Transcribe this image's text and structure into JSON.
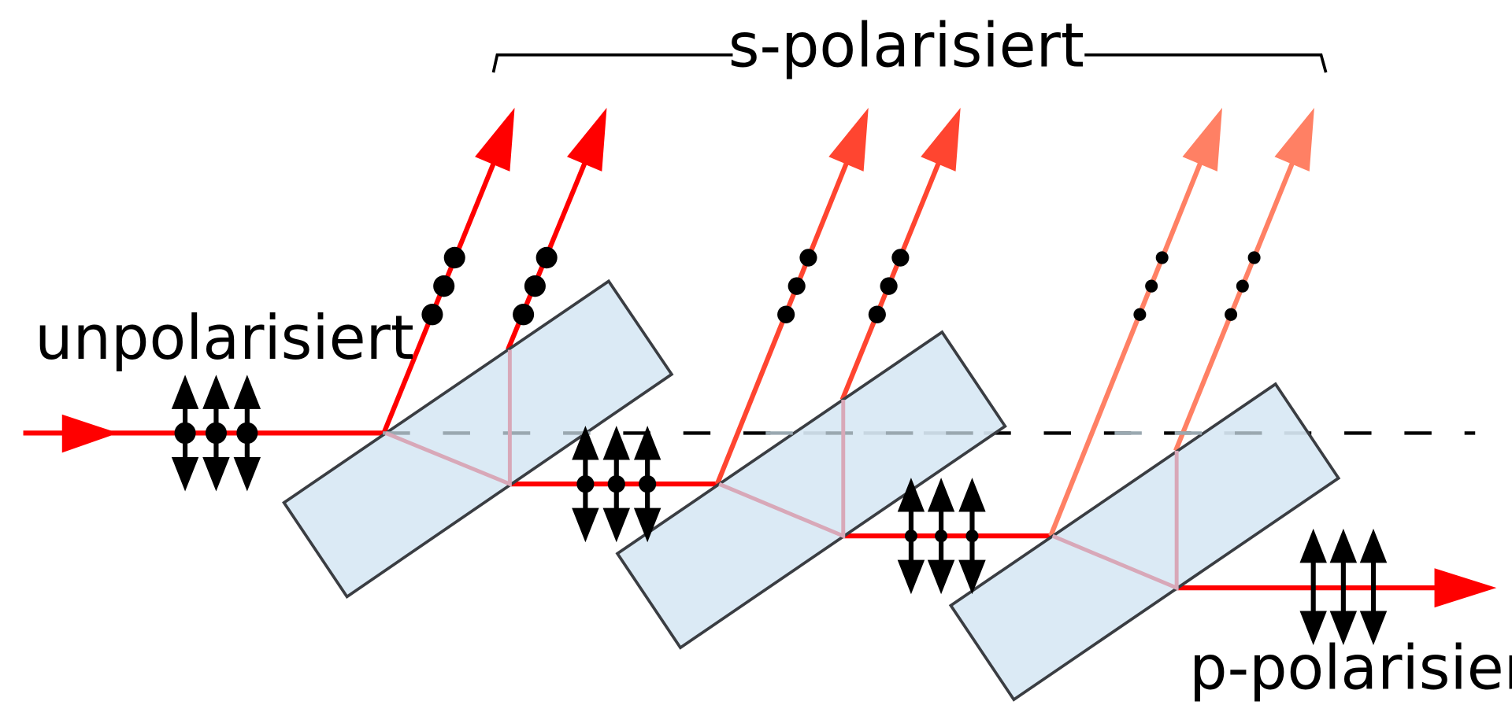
{
  "labels": {
    "unpolarized": "unpolarisiert",
    "s_polarized": "s-polarisiert",
    "p_polarized": "p-polarisiert"
  },
  "colors": {
    "beam_main": "#ff0000",
    "beam_stage2": "#ff4530",
    "beam_stage3": "#ff8064",
    "plate_fill": "#d8e8f4",
    "plate_stroke": "#3a3d42",
    "internal_ray": "#d8a8b8",
    "dashed_reference": "#000000",
    "polarization_marker": "#000000"
  },
  "icons": {
    "plate": "glass-plate",
    "dot": "s-polarization-dot",
    "double_arrow": "p-polarization-arrow"
  }
}
